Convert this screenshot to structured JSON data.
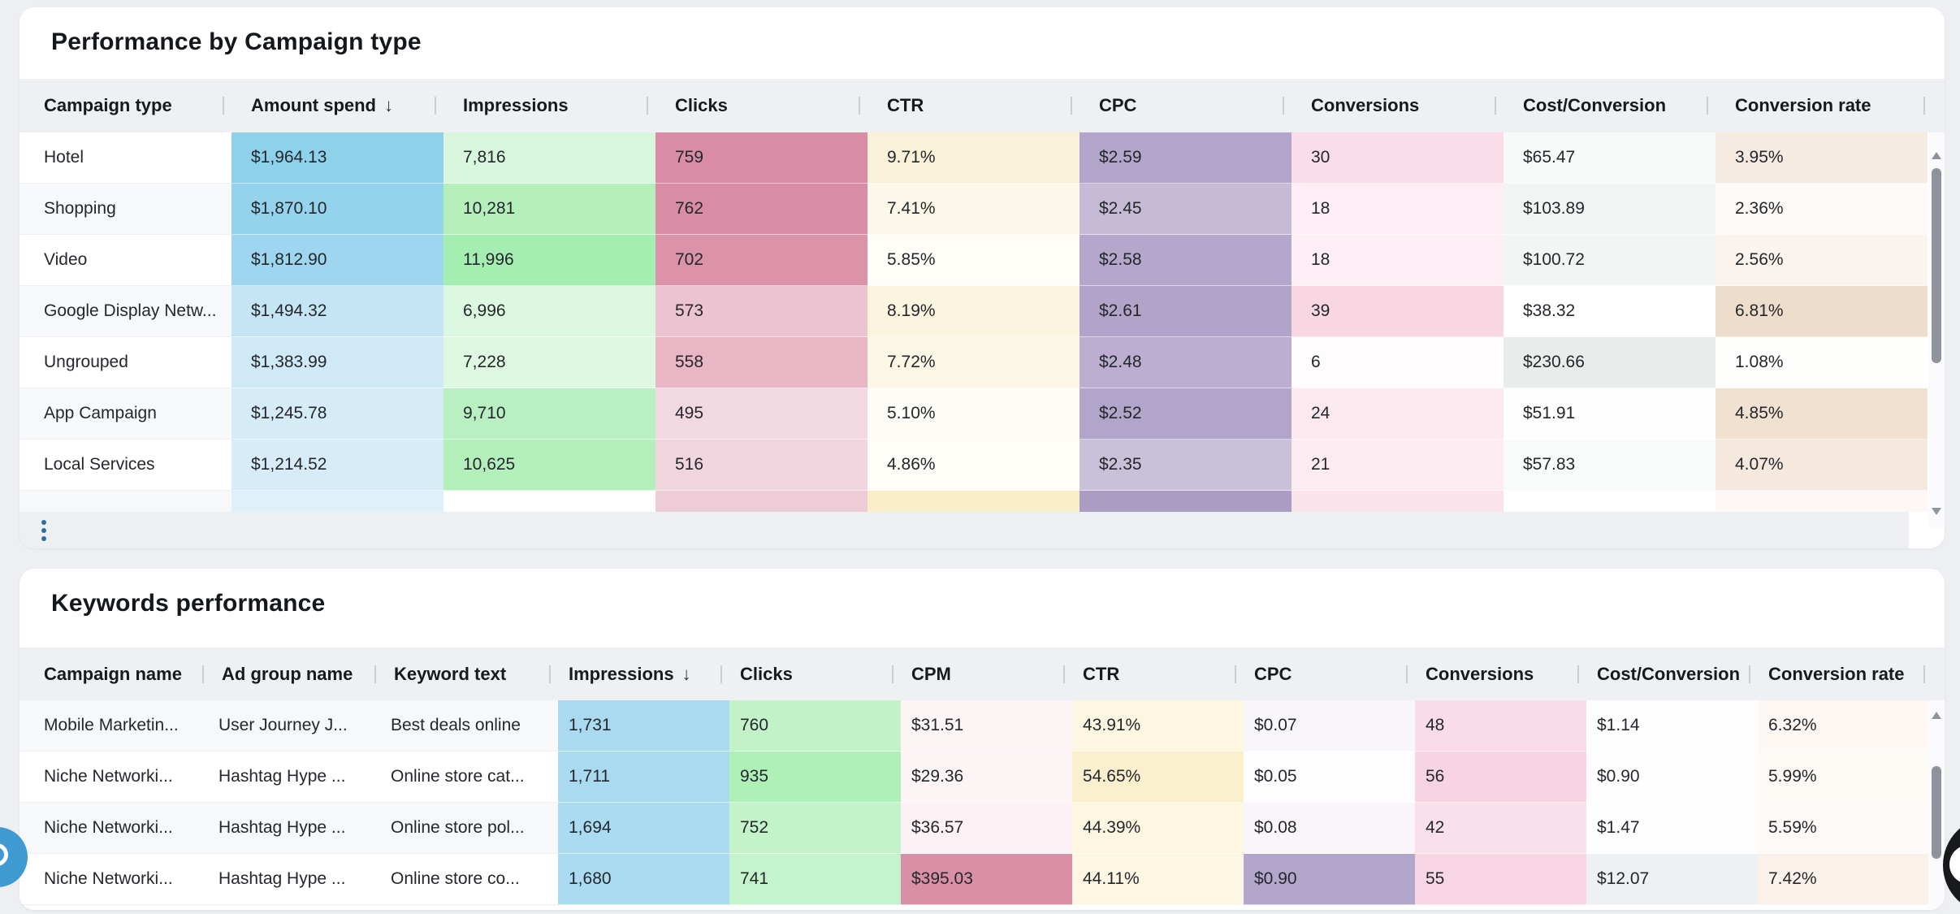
{
  "campaign_table": {
    "title": "Performance by Campaign type",
    "sort_icon": "↓",
    "columns": [
      {
        "label": "Campaign type",
        "sorted": false
      },
      {
        "label": "Amount spend",
        "sorted": true
      },
      {
        "label": "Impressions",
        "sorted": false
      },
      {
        "label": "Clicks",
        "sorted": false
      },
      {
        "label": "CTR",
        "sorted": false
      },
      {
        "label": "CPC",
        "sorted": false
      },
      {
        "label": "Conversions",
        "sorted": false
      },
      {
        "label": "Cost/Conversion",
        "sorted": false
      },
      {
        "label": "Conversion rate",
        "sorted": false
      }
    ],
    "rows": [
      {
        "label": "Hotel",
        "cells": [
          {
            "v": "$1,964.13",
            "bg": "#8ed1ea"
          },
          {
            "v": "7,816",
            "bg": "#d9f7dd"
          },
          {
            "v": "759",
            "bg": "#d98ca5"
          },
          {
            "v": "9.71%",
            "bg": "#faf1d9"
          },
          {
            "v": "$2.59",
            "bg": "#b3a6cb"
          },
          {
            "v": "30",
            "bg": "#f9dde8"
          },
          {
            "v": "$65.47",
            "bg": "#f7faf8"
          },
          {
            "v": "3.95%",
            "bg": "#f5ebe2"
          }
        ]
      },
      {
        "label": "Shopping",
        "cells": [
          {
            "v": "$1,870.10",
            "bg": "#95d3ec"
          },
          {
            "v": "10,281",
            "bg": "#b4efbc"
          },
          {
            "v": "762",
            "bg": "#d98ca5"
          },
          {
            "v": "7.41%",
            "bg": "#fcf7e8"
          },
          {
            "v": "$2.45",
            "bg": "#c5bbd7"
          },
          {
            "v": "18",
            "bg": "#fdeff5"
          },
          {
            "v": "$103.89",
            "bg": "#f0f4f2"
          },
          {
            "v": "2.36%",
            "bg": "#fdf9f6"
          }
        ]
      },
      {
        "label": "Video",
        "cells": [
          {
            "v": "$1,812.90",
            "bg": "#9dd6ee"
          },
          {
            "v": "11,996",
            "bg": "#a4eeb2"
          },
          {
            "v": "702",
            "bg": "#dc93aa"
          },
          {
            "v": "5.85%",
            "bg": "#fffdf8"
          },
          {
            "v": "$2.58",
            "bg": "#b4a7cb"
          },
          {
            "v": "18",
            "bg": "#fdeff5"
          },
          {
            "v": "$100.72",
            "bg": "#f1f5f3"
          },
          {
            "v": "2.56%",
            "bg": "#fbf4ee"
          }
        ]
      },
      {
        "label": "Google Display Netw...",
        "cells": [
          {
            "v": "$1,494.32",
            "bg": "#c5e4f4"
          },
          {
            "v": "6,996",
            "bg": "#ddf8e0"
          },
          {
            "v": "573",
            "bg": "#ecc3d0"
          },
          {
            "v": "8.19%",
            "bg": "#fbf4df"
          },
          {
            "v": "$2.61",
            "bg": "#b2a4c9"
          },
          {
            "v": "39",
            "bg": "#f8d7e3"
          },
          {
            "v": "$38.32",
            "bg": "#fefffe"
          },
          {
            "v": "6.81%",
            "bg": "#eeddca"
          }
        ]
      },
      {
        "label": "Ungrouped",
        "cells": [
          {
            "v": "$1,383.99",
            "bg": "#cfe9f6"
          },
          {
            "v": "7,228",
            "bg": "#def8e1"
          },
          {
            "v": "558",
            "bg": "#e9b6c6"
          },
          {
            "v": "7.72%",
            "bg": "#fcf6e4"
          },
          {
            "v": "$2.48",
            "bg": "#bbaed1"
          },
          {
            "v": "6",
            "bg": "#fefcfd"
          },
          {
            "v": "$230.66",
            "bg": "#e8eceb"
          },
          {
            "v": "1.08%",
            "bg": "#fefefd"
          }
        ]
      },
      {
        "label": "App Campaign",
        "cells": [
          {
            "v": "$1,245.78",
            "bg": "#d5ebf7"
          },
          {
            "v": "9,710",
            "bg": "#b9f0c1"
          },
          {
            "v": "495",
            "bg": "#f2d8e0"
          },
          {
            "v": "5.10%",
            "bg": "#fefcf6"
          },
          {
            "v": "$2.52",
            "bg": "#b2a5ca"
          },
          {
            "v": "24",
            "bg": "#fce9f0"
          },
          {
            "v": "$51.91",
            "bg": "#fdfefd"
          },
          {
            "v": "4.85%",
            "bg": "#f0e1d1"
          }
        ]
      },
      {
        "label": "Local Services",
        "cells": [
          {
            "v": "$1,214.52",
            "bg": "#d7ecf8"
          },
          {
            "v": "10,625",
            "bg": "#b2efbb"
          },
          {
            "v": "516",
            "bg": "#f1d5de"
          },
          {
            "v": "4.86%",
            "bg": "#fefdf8"
          },
          {
            "v": "$2.35",
            "bg": "#c9c0da"
          },
          {
            "v": "21",
            "bg": "#fcebf1"
          },
          {
            "v": "$57.83",
            "bg": "#f9fbfa"
          },
          {
            "v": "4.07%",
            "bg": "#f5e9de"
          }
        ]
      }
    ],
    "partial_row_colors": [
      "#dff0fa",
      "#ffffff",
      "#eeccd7",
      "#f9edca",
      "#aa9cc3",
      "#fbe3ec",
      "#ffffff",
      "#fdf8f5"
    ]
  },
  "keywords_table": {
    "title": "Keywords performance",
    "sort_icon": "↓",
    "columns": [
      {
        "label": "Campaign name",
        "sorted": false
      },
      {
        "label": "Ad group name",
        "sorted": false
      },
      {
        "label": "Keyword text",
        "sorted": false
      },
      {
        "label": "Impressions",
        "sorted": true
      },
      {
        "label": "Clicks",
        "sorted": false
      },
      {
        "label": "CPM",
        "sorted": false
      },
      {
        "label": "CTR",
        "sorted": false
      },
      {
        "label": "CPC",
        "sorted": false
      },
      {
        "label": "Conversions",
        "sorted": false
      },
      {
        "label": "Cost/Conversion",
        "sorted": false
      },
      {
        "label": "Conversion rate",
        "sorted": false
      }
    ],
    "rows": [
      {
        "labels": [
          "Mobile Marketin...",
          "User Journey J...",
          "Best deals online"
        ],
        "cells": [
          {
            "v": "1,731",
            "bg": "#a9daf0"
          },
          {
            "v": "760",
            "bg": "#c3f2c9"
          },
          {
            "v": "$31.51",
            "bg": "#fdf4f6"
          },
          {
            "v": "43.91%",
            "bg": "#fdf6e0"
          },
          {
            "v": "$0.07",
            "bg": "#f9f6fa"
          },
          {
            "v": "48",
            "bg": "#f9dce8"
          },
          {
            "v": "$1.14",
            "bg": "#fefefe"
          },
          {
            "v": "6.32%",
            "bg": "#fdf8f4"
          }
        ]
      },
      {
        "labels": [
          "Niche Networki...",
          "Hashtag Hype ...",
          "Online store cat..."
        ],
        "cells": [
          {
            "v": "1,711",
            "bg": "#aadaf0"
          },
          {
            "v": "935",
            "bg": "#aff0b9"
          },
          {
            "v": "$29.36",
            "bg": "#fdf4f6"
          },
          {
            "v": "54.65%",
            "bg": "#faf0cd"
          },
          {
            "v": "$0.05",
            "bg": "#fdfcfe"
          },
          {
            "v": "56",
            "bg": "#f8d3e1"
          },
          {
            "v": "$0.90",
            "bg": "#fefefe"
          },
          {
            "v": "5.99%",
            "bg": "#fdf9f5"
          }
        ]
      },
      {
        "labels": [
          "Niche Networki...",
          "Hashtag Hype ...",
          "Online store pol..."
        ],
        "cells": [
          {
            "v": "1,694",
            "bg": "#abdbf0"
          },
          {
            "v": "752",
            "bg": "#c4f3ca"
          },
          {
            "v": "$36.57",
            "bg": "#fcf1f4"
          },
          {
            "v": "44.39%",
            "bg": "#fdf6e1"
          },
          {
            "v": "$0.08",
            "bg": "#f9f5fa"
          },
          {
            "v": "42",
            "bg": "#fae0ea"
          },
          {
            "v": "$1.47",
            "bg": "#fefeff"
          },
          {
            "v": "5.59%",
            "bg": "#fdf9f6"
          }
        ]
      },
      {
        "labels": [
          "Niche Networki...",
          "Hashtag Hype ...",
          "Online store co..."
        ],
        "cells": [
          {
            "v": "1,680",
            "bg": "#abdbf1"
          },
          {
            "v": "741",
            "bg": "#c5f3cb"
          },
          {
            "v": "$395.03",
            "bg": "#d990a7"
          },
          {
            "v": "44.11%",
            "bg": "#fdf6e2"
          },
          {
            "v": "$0.90",
            "bg": "#b3a6cb"
          },
          {
            "v": "55",
            "bg": "#f8d6e3"
          },
          {
            "v": "$12.07",
            "bg": "#eef1f3"
          },
          {
            "v": "7.42%",
            "bg": "#faf1ea"
          }
        ]
      }
    ]
  },
  "colors": {
    "page_bg": "#edeff3",
    "card_bg": "#ffffff",
    "header_bg": "#eef0f4",
    "kebab_dot": "#2e6e9e",
    "scrollbar": "#8f949c",
    "fab_blue": "#3e9ad1",
    "fab_black": "#17191d"
  }
}
